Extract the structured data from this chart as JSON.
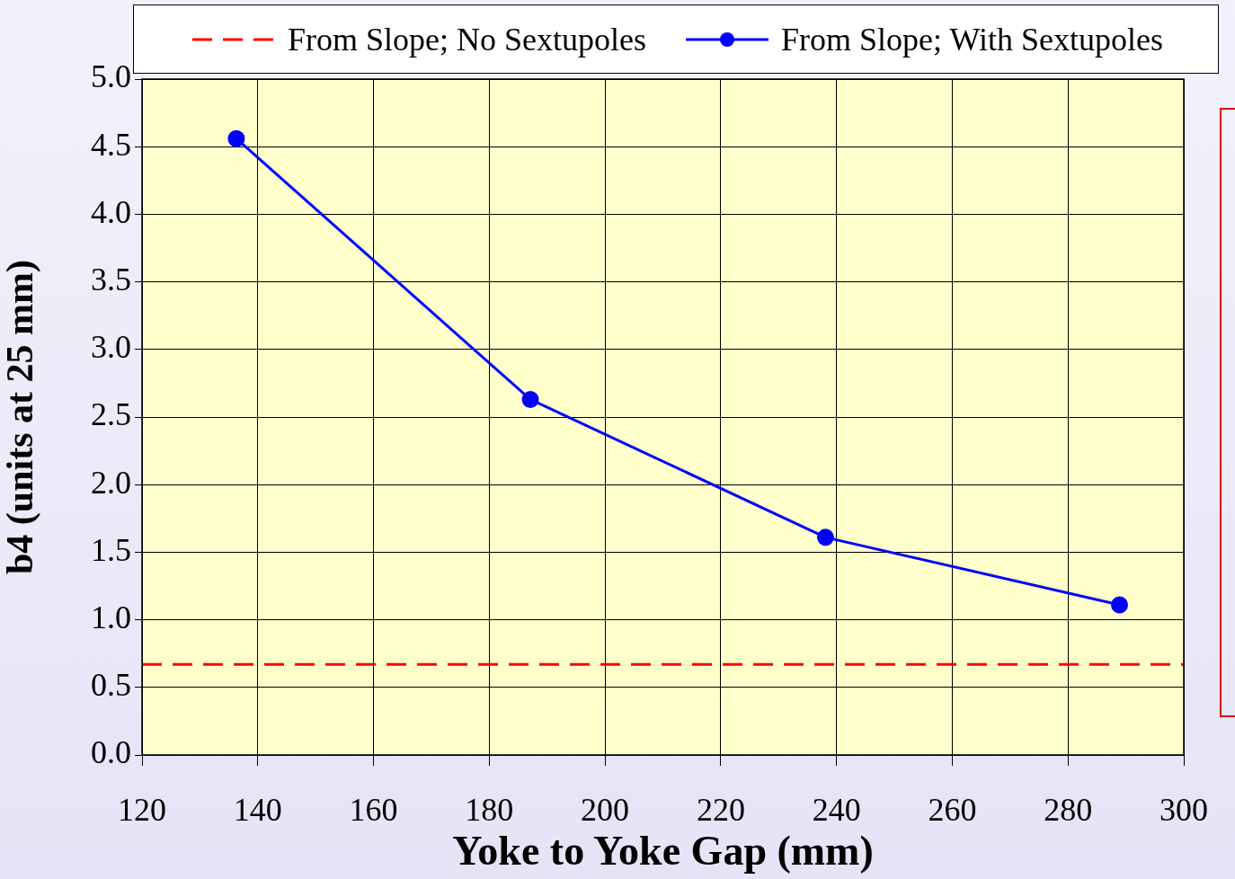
{
  "chart_data": {
    "type": "line",
    "xlabel": "Yoke to Yoke Gap (mm)",
    "ylabel": "b4 (units at 25 mm)",
    "series": [
      {
        "name": "From Slope; No Sextupoles",
        "color": "#ff0000",
        "x": [
          120,
          300
        ],
        "values": [
          0.67,
          0.67
        ],
        "line_style": "dashed",
        "marker": "none"
      },
      {
        "name": "From Slope; With Sextupoles",
        "color": "#0000ff",
        "x": [
          136.3,
          187.1,
          238.1,
          288.9
        ],
        "values": [
          4.56,
          2.63,
          1.61,
          1.11
        ],
        "line_style": "solid",
        "marker": "circle"
      }
    ],
    "xlim": [
      120,
      300
    ],
    "xticks": [
      120,
      140,
      160,
      180,
      200,
      220,
      240,
      260,
      280,
      300
    ],
    "ylim": [
      0,
      5
    ],
    "yticks": [
      {
        "value": 0,
        "label": "0.0"
      },
      {
        "value": 0.5,
        "label": "0.5"
      },
      {
        "value": 1,
        "label": "1.0"
      },
      {
        "value": 1.5,
        "label": "1.5"
      },
      {
        "value": 2,
        "label": "2.0"
      },
      {
        "value": 2.5,
        "label": "2.5"
      },
      {
        "value": 3,
        "label": "3.0"
      },
      {
        "value": 3.5,
        "label": "3.5"
      },
      {
        "value": 4,
        "label": "4.0"
      },
      {
        "value": 4.5,
        "label": "4.5"
      },
      {
        "value": 5,
        "label": "5.0"
      }
    ],
    "grid": true,
    "legend": "top"
  }
}
